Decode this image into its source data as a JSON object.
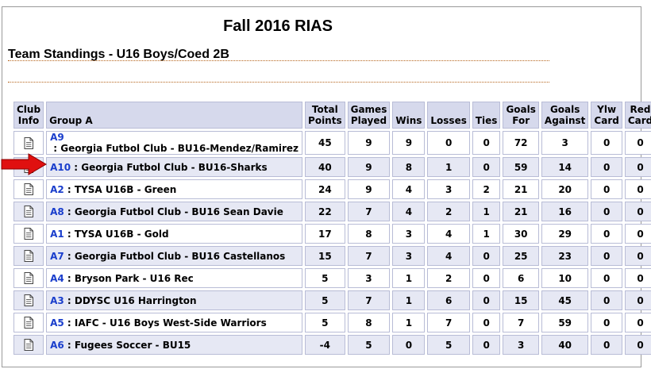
{
  "title": "Fall 2016 RIAS",
  "subtitle": "Team Standings - U16 Boys/Coed 2B",
  "columns": {
    "club_info": "Club Info",
    "group": "Group A",
    "total_points": "Total Points",
    "games_played": "Games Played",
    "wins": "Wins",
    "losses": "Losses",
    "ties": "Ties",
    "goals_for": "Goals For",
    "goals_against": "Goals Against",
    "ylw_card": "Ylw Card",
    "red_card": "Red Card"
  },
  "rows": [
    {
      "code": "A9",
      "team": " : Georgia Futbol Club - BU16-Mendez/Ramirez",
      "pts": "45",
      "gp": "9",
      "w": "9",
      "l": "0",
      "t": "0",
      "gf": "72",
      "ga": "3",
      "y": "0",
      "r": "0"
    },
    {
      "code": "A10",
      "team": " : Georgia Futbol Club - BU16-Sharks",
      "pts": "40",
      "gp": "9",
      "w": "8",
      "l": "1",
      "t": "0",
      "gf": "59",
      "ga": "14",
      "y": "0",
      "r": "0"
    },
    {
      "code": "A2",
      "team": " : TYSA U16B - Green",
      "pts": "24",
      "gp": "9",
      "w": "4",
      "l": "3",
      "t": "2",
      "gf": "21",
      "ga": "20",
      "y": "0",
      "r": "0"
    },
    {
      "code": "A8",
      "team": " : Georgia Futbol Club - BU16 Sean Davie",
      "pts": "22",
      "gp": "7",
      "w": "4",
      "l": "2",
      "t": "1",
      "gf": "21",
      "ga": "16",
      "y": "0",
      "r": "0"
    },
    {
      "code": "A1",
      "team": " : TYSA U16B - Gold",
      "pts": "17",
      "gp": "8",
      "w": "3",
      "l": "4",
      "t": "1",
      "gf": "30",
      "ga": "29",
      "y": "0",
      "r": "0"
    },
    {
      "code": "A7",
      "team": " : Georgia Futbol Club - BU16 Castellanos",
      "pts": "15",
      "gp": "7",
      "w": "3",
      "l": "4",
      "t": "0",
      "gf": "25",
      "ga": "23",
      "y": "0",
      "r": "0"
    },
    {
      "code": "A4",
      "team": " : Bryson Park - U16 Rec",
      "pts": "5",
      "gp": "3",
      "w": "1",
      "l": "2",
      "t": "0",
      "gf": "6",
      "ga": "10",
      "y": "0",
      "r": "0"
    },
    {
      "code": "A3",
      "team": " : DDYSC U16 Harrington",
      "pts": "5",
      "gp": "7",
      "w": "1",
      "l": "6",
      "t": "0",
      "gf": "15",
      "ga": "45",
      "y": "0",
      "r": "0"
    },
    {
      "code": "A5",
      "team": " : IAFC - U16 Boys West-Side Warriors",
      "pts": "5",
      "gp": "8",
      "w": "1",
      "l": "7",
      "t": "0",
      "gf": "7",
      "ga": "59",
      "y": "0",
      "r": "0"
    },
    {
      "code": "A6",
      "team": " : Fugees Soccer - BU15",
      "pts": "-4",
      "gp": "5",
      "w": "0",
      "l": "5",
      "t": "0",
      "gf": "3",
      "ga": "40",
      "y": "0",
      "r": "0"
    }
  ],
  "icons": {
    "club_info": "document-icon",
    "pointer": "red-arrow-icon"
  },
  "colors": {
    "link": "#1a3ecc",
    "header_bg": "#d6d9ec",
    "alt_row_bg": "#e6e8f4",
    "arrow": "#e01010"
  }
}
